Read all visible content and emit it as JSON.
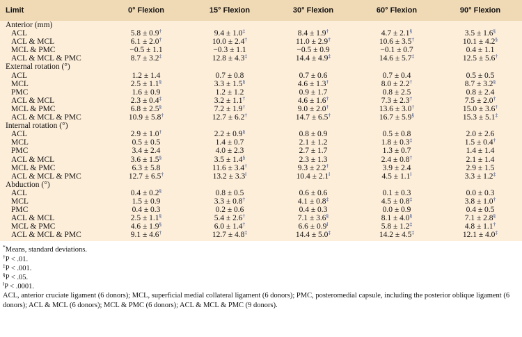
{
  "table": {
    "header": [
      "Limit",
      "0° Flexion",
      "15° Flexion",
      "30° Flexion",
      "60° Flexion",
      "90° Flexion"
    ],
    "sections": [
      {
        "title": "Anterior (mm)",
        "rows": [
          [
            "ACL",
            {
              "v": "5.8 ± 0.9",
              "sup": "†"
            },
            {
              "v": "9.4 ± 1.0",
              "sup": "‡"
            },
            {
              "v": "8.4 ± 1.9",
              "sup": "†"
            },
            {
              "v": "4.7 ± 2.1",
              "sup": "§"
            },
            {
              "v": "3.5 ± 1.6",
              "sup": "§"
            }
          ],
          [
            "ACL & MCL",
            {
              "v": "6.1 ± 2.0",
              "sup": "†"
            },
            {
              "v": "10.0 ± 2.4",
              "sup": "†"
            },
            {
              "v": "11.0 ± 2.9",
              "sup": "†"
            },
            {
              "v": "10.6 ± 3.5",
              "sup": "†"
            },
            {
              "v": "10.1 ± 4.2",
              "sup": "§"
            }
          ],
          [
            "MCL & PMC",
            "−0.5 ± 1.1",
            "−0.3 ± 1.1",
            "−0.5 ± 0.9",
            "−0.1 ± 0.7",
            "0.4 ± 1.1"
          ],
          [
            "ACL & MCL & PMC",
            {
              "v": "8.7 ± 3.2",
              "sup": "‡"
            },
            {
              "v": "12.8 ± 4.3",
              "sup": "‡"
            },
            {
              "v": "14.4 ± 4.9",
              "sup": "‡"
            },
            {
              "v": "14.6 ± 5.7",
              "sup": "‡"
            },
            {
              "v": "12.5 ± 5.6",
              "sup": "†"
            }
          ]
        ]
      },
      {
        "title": "External rotation (°)",
        "rows": [
          [
            "ACL",
            "1.2 ± 1.4",
            "0.7 ± 0.8",
            "0.7 ± 0.6",
            "0.7 ± 0.4",
            "0.5 ± 0.5"
          ],
          [
            "MCL",
            {
              "v": "2.5 ± 1.1",
              "sup": "§"
            },
            {
              "v": "3.3 ± 1.5",
              "sup": "§"
            },
            {
              "v": "4.6 ± 1.3",
              "sup": "†"
            },
            {
              "v": "8.0 ± 2.2",
              "sup": "†"
            },
            {
              "v": "8.7 ± 3.2",
              "sup": "§"
            }
          ],
          [
            "PMC",
            "1.6 ± 0.9",
            "1.2 ± 1.2",
            "0.9 ± 1.7",
            "0.8 ± 2.5",
            "0.8 ± 2.4"
          ],
          [
            "ACL & MCL",
            {
              "v": "2.3 ± 0.4",
              "sup": "‡"
            },
            {
              "v": "3.2 ± 1.1",
              "sup": "†"
            },
            {
              "v": "4.6 ± 1.6",
              "sup": "†"
            },
            {
              "v": "7.3 ± 2.3",
              "sup": "†"
            },
            {
              "v": "7.5 ± 2.0",
              "sup": "†"
            }
          ],
          [
            "MCL & PMC",
            {
              "v": "6.8 ± 2.5",
              "sup": "§"
            },
            {
              "v": "7.2 ± 1.9",
              "sup": "†"
            },
            {
              "v": "9.0 ± 2.0",
              "sup": "†"
            },
            {
              "v": "13.6 ± 3.0",
              "sup": "†"
            },
            {
              "v": "15.0 ± 3.6",
              "sup": "†"
            }
          ],
          [
            "ACL & MCL & PMC",
            {
              "v": "10.9 ± 5.8",
              "sup": "†"
            },
            {
              "v": "12.7 ± 6.2",
              "sup": "†"
            },
            {
              "v": "14.7 ± 6.5",
              "sup": "†"
            },
            {
              "v": "16.7 ± 5.9",
              "sup": "§"
            },
            {
              "v": "15.3 ± 5.1",
              "sup": "‡"
            }
          ]
        ]
      },
      {
        "title": "Internal rotation (°)",
        "rows": [
          [
            "ACL",
            {
              "v": "2.9 ± 1.0",
              "sup": "†"
            },
            {
              "v": "2.2 ± 0.9",
              "sup": "§"
            },
            "0.8 ± 0.9",
            "0.5 ± 0.8",
            "2.0 ± 2.6"
          ],
          [
            "MCL",
            "0.5 ± 0.5",
            "1.4 ± 0.7",
            "2.1 ± 1.2",
            {
              "v": "1.8 ± 0.3",
              "sup": "‡"
            },
            {
              "v": "1.5 ± 0.4",
              "sup": "†"
            }
          ],
          [
            "PMC",
            "3.4 ± 2.4",
            "4.0 ± 2.3",
            "2.7 ± 1.7",
            "1.3 ± 0.7",
            "1.4 ± 1.4"
          ],
          [
            "ACL & MCL",
            {
              "v": "3.6 ± 1.5",
              "sup": "§"
            },
            {
              "v": "3.5 ± 1.4",
              "sup": "§"
            },
            "2.3 ± 1.3",
            {
              "v": "2.4 ± 0.8",
              "sup": "†"
            },
            "2.1 ± 1.4"
          ],
          [
            "MCL & PMC",
            "6.3 ± 5.8",
            {
              "v": "11.6 ± 3.4",
              "sup": "†"
            },
            {
              "v": "9.3 ± 2.2",
              "sup": "†"
            },
            "3.9 ± 2.4",
            "2.9 ± 1.5"
          ],
          [
            "ACL & MCL & PMC",
            {
              "v": "12.7 ± 6.5",
              "sup": "†"
            },
            {
              "v": "13.2 ± 3.3",
              "sup": "‖"
            },
            {
              "v": "10.4 ± 2.1",
              "sup": "‖"
            },
            {
              "v": "4.5 ± 1.1",
              "sup": "‖"
            },
            {
              "v": "3.3 ± 1.2",
              "sup": "‡"
            }
          ]
        ]
      },
      {
        "title": "Abduction (°)",
        "rows": [
          [
            "ACL",
            {
              "v": "0.4 ± 0.2",
              "sup": "§"
            },
            "0.8 ± 0.5",
            "0.6 ± 0.6",
            "0.1 ± 0.3",
            "0.0 ± 0.3"
          ],
          [
            "MCL",
            "1.5 ± 0.9",
            {
              "v": "3.3 ± 0.8",
              "sup": "†"
            },
            {
              "v": "4.1 ± 0.8",
              "sup": "‡"
            },
            {
              "v": "4.5 ± 0.8",
              "sup": "‡"
            },
            {
              "v": "3.8 ± 1.0",
              "sup": "†"
            }
          ],
          [
            "PMC",
            "0.4 ± 0.3",
            "0.2 ± 0.6",
            "0.4 ± 0.3",
            "0.0 ± 0.9",
            "0.4 ± 0.5"
          ],
          [
            "ACL & MCL",
            {
              "v": "2.5 ± 1.1",
              "sup": "§"
            },
            {
              "v": "5.4 ± 2.6",
              "sup": "†"
            },
            {
              "v": "7.1 ± 3.6",
              "sup": "§"
            },
            {
              "v": "8.1 ± 4.0",
              "sup": "§"
            },
            {
              "v": "7.1 ± 2.8",
              "sup": "§"
            }
          ],
          [
            "MCL & PMC",
            {
              "v": "4.6 ± 1.9",
              "sup": "§"
            },
            {
              "v": "6.0 ± 1.4",
              "sup": "†"
            },
            {
              "v": "6.6 ± 0.9",
              "sup": "‖"
            },
            {
              "v": "5.8 ± 1.2",
              "sup": "‡"
            },
            {
              "v": "4.8 ± 1.1",
              "sup": "†"
            }
          ],
          [
            "ACL & MCL & PMC",
            {
              "v": "9.1 ± 4.6",
              "sup": "†"
            },
            {
              "v": "12.7 ± 4.8",
              "sup": "‡"
            },
            {
              "v": "14.4 ± 5.0",
              "sup": "‡"
            },
            {
              "v": "14.2 ± 4.5",
              "sup": "‡"
            },
            {
              "v": "12.1 ± 4.0",
              "sup": "‡"
            }
          ]
        ]
      }
    ]
  },
  "footnotes": [
    {
      "mark": "*",
      "text": "Means, standard deviations."
    },
    {
      "mark": "†",
      "text": "P < .01."
    },
    {
      "mark": "‡",
      "text": "P < .001."
    },
    {
      "mark": "§",
      "text": "P < .05."
    },
    {
      "mark": "‖",
      "text": "P < .0001."
    },
    "ACL, anterior cruciate ligament (6 donors); MCL, superficial medial collateral ligament (6 donors); PMC, posteromedial capsule, including the posterior oblique ligament (6 donors); ACL & MCL (6 donors); MCL & PMC (6 donors); ACL & MCL & PMC (9 donors)."
  ]
}
